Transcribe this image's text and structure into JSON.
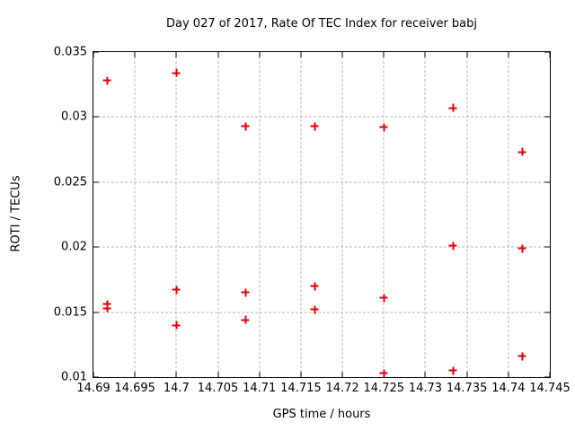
{
  "window": {
    "background_color": "#ffffff"
  },
  "chart_data": {
    "type": "scatter",
    "title": "Day 027 of 2017, Rate Of TEC Index for receiver babj",
    "xlabel": "GPS time / hours",
    "ylabel": "ROTI / TECUs",
    "xlim": [
      14.69,
      14.745
    ],
    "ylim": [
      0.01,
      0.035
    ],
    "grid": true,
    "legend": "none",
    "marker_shape": "plus",
    "marker_color": "#e00000",
    "grid_color": "#b4b4b4",
    "border_color": "#000000",
    "text_color": "#000000",
    "x_ticks": [
      14.69,
      14.695,
      14.7,
      14.705,
      14.71,
      14.715,
      14.72,
      14.725,
      14.73,
      14.735,
      14.74,
      14.745
    ],
    "x_tick_labels": [
      "14.69",
      "14.695",
      "14.7",
      "14.705",
      "14.71",
      "14.715",
      "14.72",
      "14.725",
      "14.73",
      "14.735",
      "14.74",
      "14.745"
    ],
    "y_ticks": [
      0.01,
      0.015,
      0.02,
      0.025,
      0.03,
      0.035
    ],
    "y_tick_labels": [
      "0.01",
      "0.015",
      "0.02",
      "0.025",
      "0.03",
      "0.035"
    ],
    "points": [
      {
        "x": 14.69167,
        "y": 0.0328
      },
      {
        "x": 14.69167,
        "y": 0.0156
      },
      {
        "x": 14.69167,
        "y": 0.0153
      },
      {
        "x": 14.7,
        "y": 0.0334
      },
      {
        "x": 14.7,
        "y": 0.0167
      },
      {
        "x": 14.7,
        "y": 0.014
      },
      {
        "x": 14.70833,
        "y": 0.0293
      },
      {
        "x": 14.70833,
        "y": 0.0165
      },
      {
        "x": 14.70833,
        "y": 0.0144
      },
      {
        "x": 14.71667,
        "y": 0.0293
      },
      {
        "x": 14.71667,
        "y": 0.017
      },
      {
        "x": 14.71667,
        "y": 0.0152
      },
      {
        "x": 14.725,
        "y": 0.0292
      },
      {
        "x": 14.725,
        "y": 0.0161
      },
      {
        "x": 14.725,
        "y": 0.0103
      },
      {
        "x": 14.73333,
        "y": 0.0307
      },
      {
        "x": 14.73333,
        "y": 0.0201
      },
      {
        "x": 14.73333,
        "y": 0.0105
      },
      {
        "x": 14.74167,
        "y": 0.0273
      },
      {
        "x": 14.74167,
        "y": 0.0199
      },
      {
        "x": 14.74167,
        "y": 0.0116
      }
    ]
  }
}
